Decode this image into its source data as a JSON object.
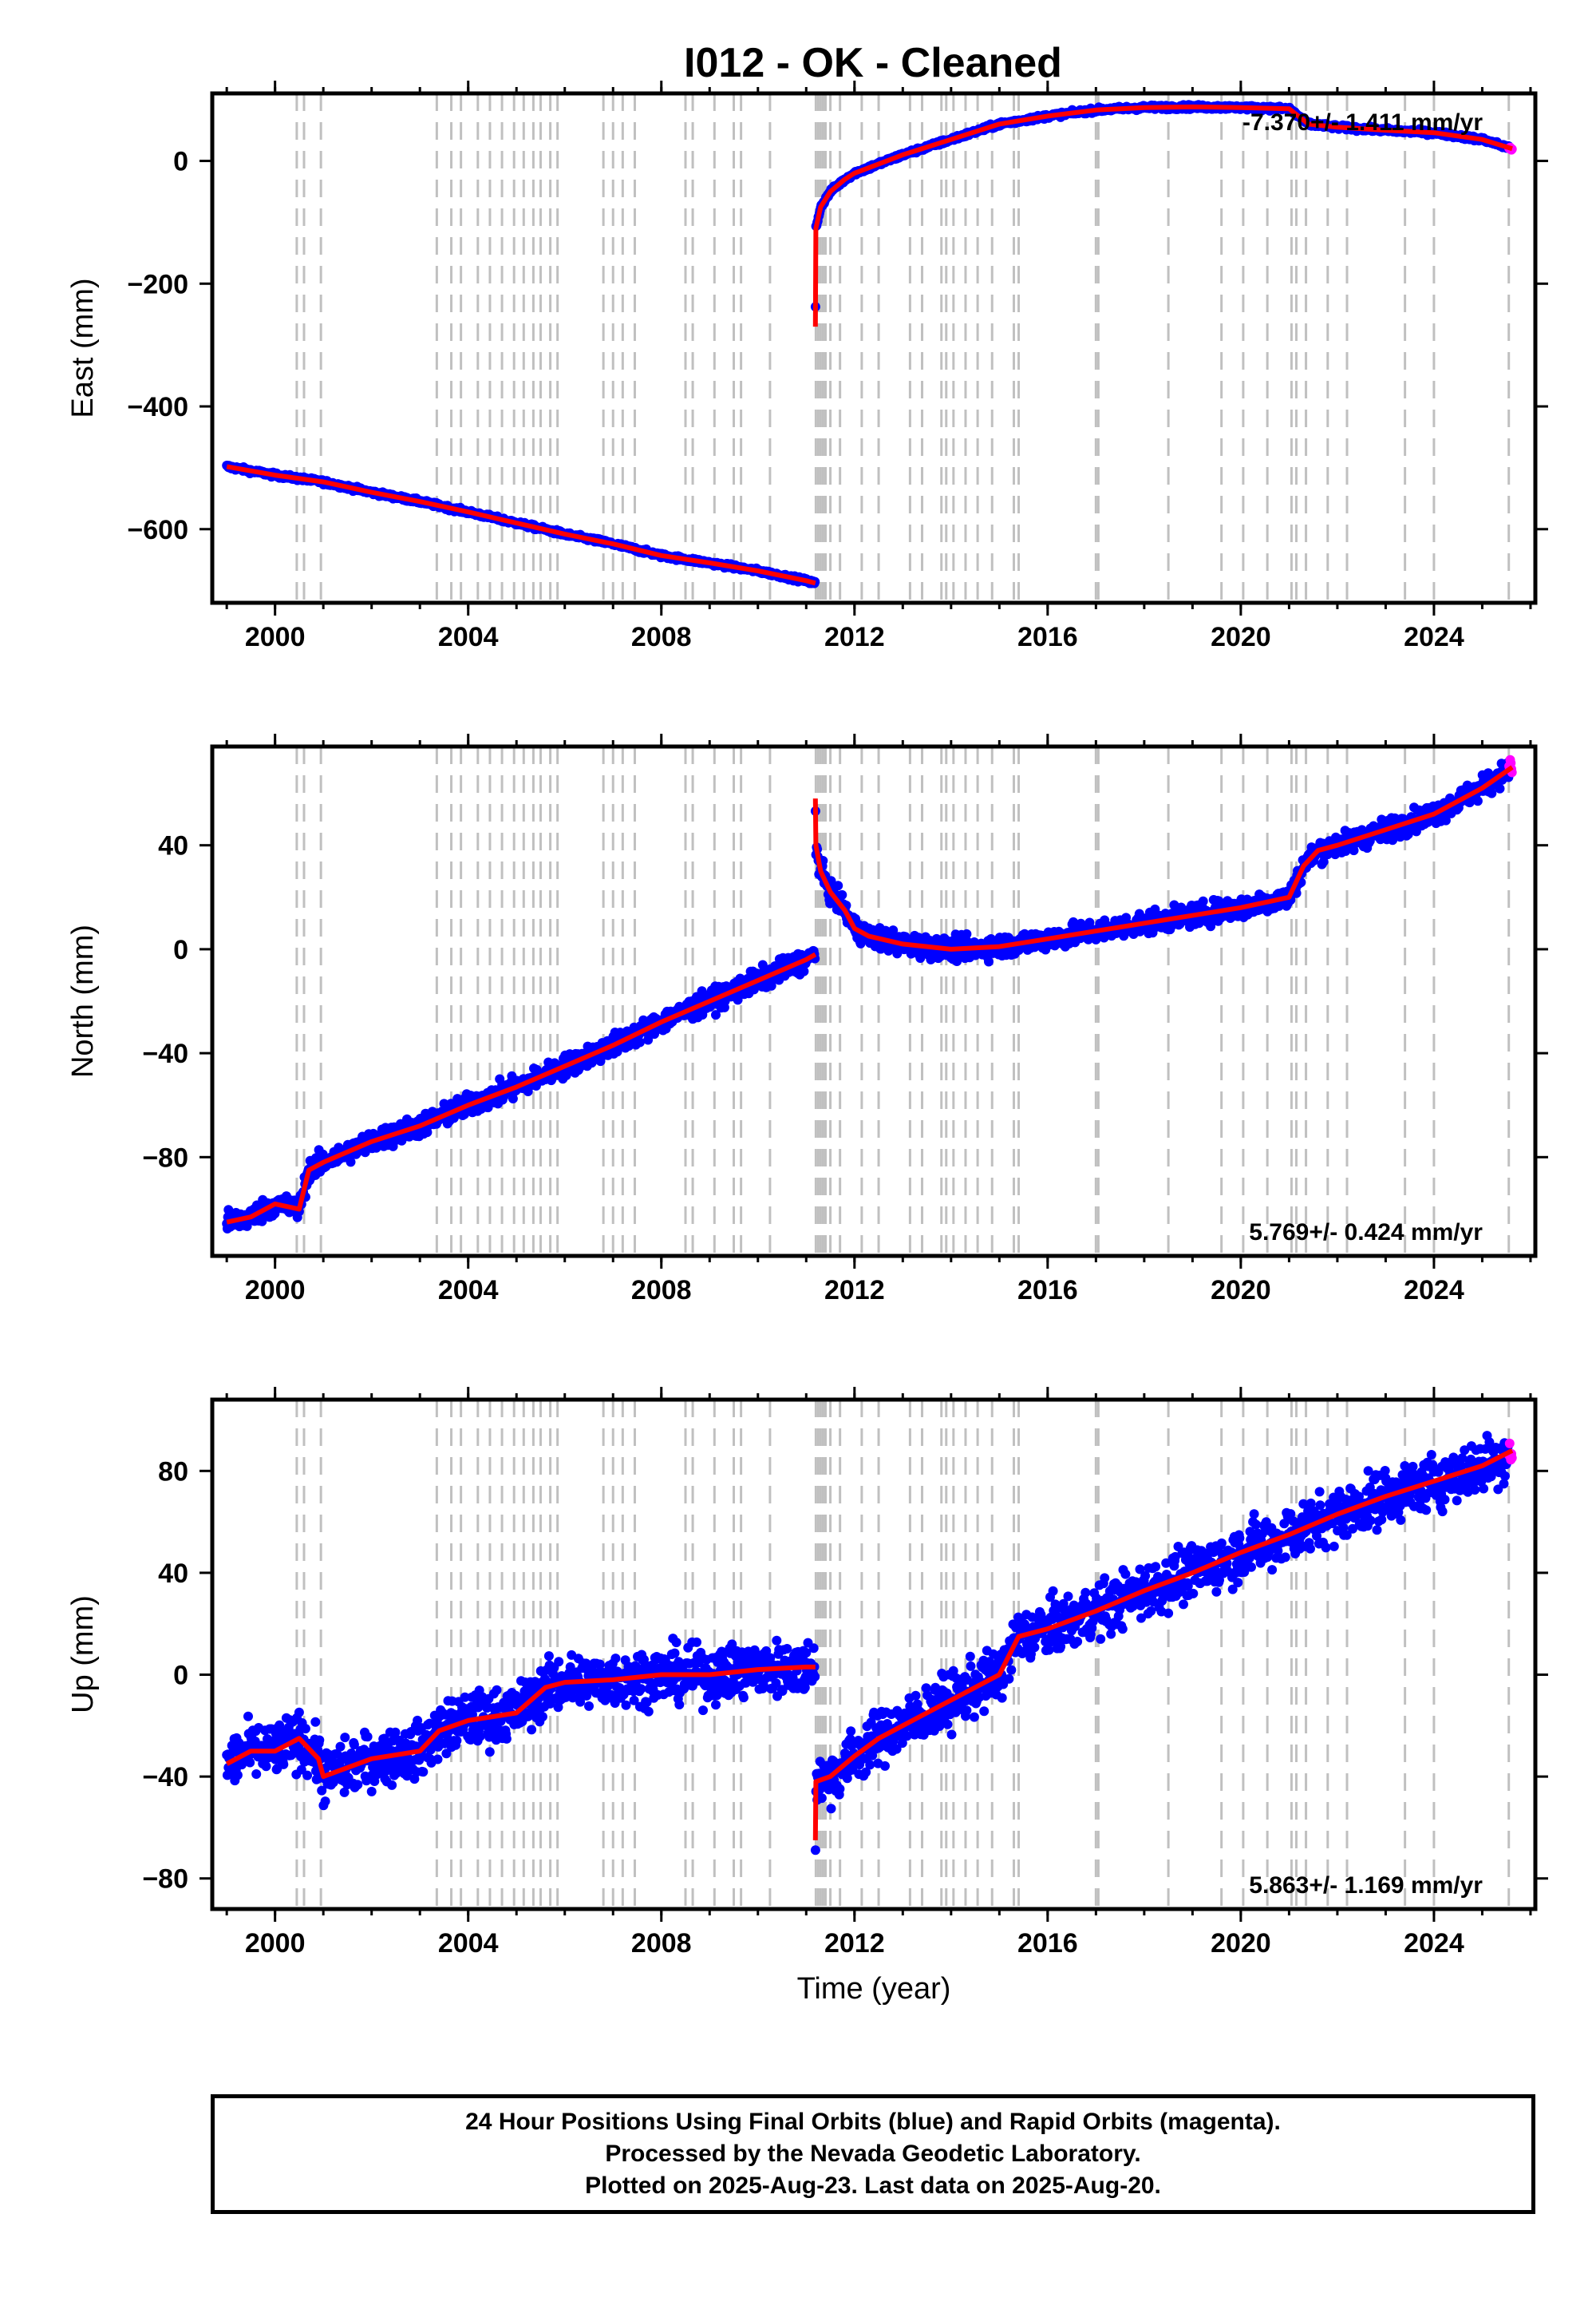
{
  "title": "I012  - OK - Cleaned",
  "colors": {
    "final_orbits": "#0000ff",
    "rapid_orbits": "#ff00ff",
    "model": "#ff0000",
    "event_lines": "#c0c0c0",
    "frame": "#000000"
  },
  "chart_data": [
    {
      "type": "scatter",
      "ylabel": "East (mm)",
      "xlim": [
        1998.7,
        2026.1
      ],
      "ylim": [
        -720,
        110
      ],
      "yticks": [
        0,
        -200,
        -400,
        -600
      ],
      "xticks": [
        2000,
        2004,
        2008,
        2012,
        2016,
        2020,
        2024
      ],
      "xtick_labels": [
        "2000",
        "2004",
        "2008",
        "2012",
        "2016",
        "2020",
        "2024"
      ],
      "ytick_labels": [
        "0",
        "−200",
        "−400",
        "−600"
      ],
      "rate_label": "-7.370+/- 1.411 mm/yr",
      "rate_position": "top-right",
      "series": [
        {
          "role": "trend",
          "x": [
            1999.0,
            2000.0,
            2001.0,
            2002.0,
            2003.0,
            2004.0,
            2005.0,
            2006.0,
            2007.0,
            2008.0,
            2009.0,
            2010.0,
            2011.0,
            2011.19
          ],
          "values": [
            -498,
            -512,
            -523,
            -540,
            -555,
            -572,
            -590,
            -608,
            -624,
            -643,
            -655,
            -668,
            -684,
            -688
          ]
        },
        {
          "role": "trend",
          "x": [
            2011.19,
            2011.2,
            2011.3,
            2011.5,
            2011.8,
            2012.0,
            2012.5,
            2013.0,
            2014.0,
            2015.0,
            2016.0,
            2017.0,
            2018.0,
            2019.0,
            2020.0,
            2021.0,
            2021.4,
            2022.0,
            2023.0,
            2024.0,
            2025.0,
            2025.62
          ],
          "values": [
            -270,
            -110,
            -75,
            -50,
            -30,
            -20,
            -5,
            10,
            35,
            60,
            73,
            83,
            87,
            88,
            87,
            85,
            60,
            55,
            50,
            46,
            35,
            20
          ]
        }
      ]
    },
    {
      "type": "scatter",
      "ylabel": "North (mm)",
      "xlim": [
        1998.7,
        2026.1
      ],
      "ylim": [
        -118,
        78
      ],
      "yticks": [
        40,
        0,
        -40,
        -80
      ],
      "xticks": [
        2000,
        2004,
        2008,
        2012,
        2016,
        2020,
        2024
      ],
      "xtick_labels": [
        "2000",
        "2004",
        "2008",
        "2012",
        "2016",
        "2020",
        "2024"
      ],
      "ytick_labels": [
        "40",
        "0",
        "−40",
        "−80"
      ],
      "rate_label": "5.769+/- 0.424 mm/yr",
      "rate_position": "bottom-right",
      "series": [
        {
          "role": "trend",
          "x": [
            1999.0,
            1999.5,
            2000.0,
            2000.5,
            2000.7,
            2001.0,
            2002.0,
            2003.0,
            2004.0,
            2005.0,
            2006.0,
            2007.0,
            2008.0,
            2009.0,
            2010.0,
            2011.0,
            2011.19
          ],
          "values": [
            -105,
            -103,
            -98,
            -100,
            -85,
            -82,
            -74,
            -68,
            -60,
            -53,
            -45,
            -37,
            -28,
            -20,
            -12,
            -4,
            -2
          ]
        },
        {
          "role": "trend",
          "x": [
            2011.19,
            2011.2,
            2011.3,
            2011.5,
            2011.8,
            2012.0,
            2012.3,
            2013.0,
            2014.0,
            2015.0,
            2016.0,
            2017.0,
            2018.0,
            2019.0,
            2020.0,
            2021.0,
            2021.3,
            2021.6,
            2022.0,
            2023.0,
            2024.0,
            2025.0,
            2025.62
          ],
          "values": [
            58,
            40,
            30,
            22,
            15,
            8,
            5,
            2,
            0,
            1,
            4,
            7,
            10,
            13,
            16,
            20,
            32,
            38,
            40,
            46,
            52,
            62,
            70
          ]
        }
      ]
    },
    {
      "type": "scatter",
      "ylabel": "Up (mm)",
      "xlabel": "Time (year)",
      "xlim": [
        1998.7,
        2026.1
      ],
      "ylim": [
        -92,
        108
      ],
      "yticks": [
        80,
        40,
        0,
        -40,
        -80
      ],
      "xticks": [
        2000,
        2004,
        2008,
        2012,
        2016,
        2020,
        2024
      ],
      "xtick_labels": [
        "2000",
        "2004",
        "2008",
        "2012",
        "2016",
        "2020",
        "2024"
      ],
      "ytick_labels": [
        "80",
        "40",
        "0",
        "−40",
        "−80"
      ],
      "rate_label": "5.863+/- 1.169 mm/yr",
      "rate_position": "bottom-right",
      "series": [
        {
          "role": "trend",
          "x": [
            1999.0,
            1999.5,
            2000.0,
            2000.5,
            2000.9,
            2001.0,
            2002.0,
            2003.0,
            2003.4,
            2004.0,
            2005.0,
            2005.6,
            2006.0,
            2007.0,
            2008.0,
            2009.0,
            2010.0,
            2011.0,
            2011.19
          ],
          "values": [
            -35,
            -30,
            -30,
            -25,
            -33,
            -40,
            -33,
            -30,
            -22,
            -18,
            -15,
            -5,
            -3,
            -2,
            0,
            0,
            2,
            3,
            3
          ]
        },
        {
          "role": "trend",
          "x": [
            2011.19,
            2011.2,
            2011.5,
            2012.0,
            2012.5,
            2013.0,
            2014.0,
            2015.0,
            2015.4,
            2016.0,
            2017.0,
            2018.0,
            2019.0,
            2020.0,
            2021.0,
            2022.0,
            2023.0,
            2024.0,
            2025.0,
            2025.62
          ],
          "values": [
            -65,
            -42,
            -40,
            -32,
            -25,
            -20,
            -10,
            0,
            15,
            18,
            25,
            33,
            40,
            48,
            55,
            63,
            70,
            76,
            82,
            88
          ]
        }
      ]
    }
  ],
  "caption": {
    "line1": "24 Hour Positions Using Final Orbits (blue) and Rapid Orbits (magenta).",
    "line2": "Processed by the Nevada Geodetic Laboratory.",
    "line3": "Plotted on 2025-Aug-23. Last data on 2025-Aug-20."
  },
  "event_years": [
    2000.45,
    2000.6,
    2000.95,
    2003.35,
    2003.65,
    2003.85,
    2004.2,
    2004.45,
    2004.7,
    2004.95,
    2005.15,
    2005.35,
    2005.5,
    2005.7,
    2005.85,
    2006.8,
    2007.0,
    2007.2,
    2007.45,
    2008.5,
    2008.65,
    2009.1,
    2009.5,
    2009.65,
    2010.25,
    2011.2,
    2011.25,
    2011.3,
    2011.35,
    2011.4,
    2011.5,
    2011.7,
    2012.15,
    2012.5,
    2013.15,
    2013.4,
    2013.8,
    2013.9,
    2014.05,
    2014.3,
    2014.55,
    2014.85,
    2015.3,
    2015.4,
    2017.0,
    2017.05,
    2018.5,
    2019.6,
    2020.05,
    2020.55,
    2021.05,
    2021.15,
    2021.35,
    2021.8,
    2022.2,
    2023.4,
    2024.0,
    2025.55
  ]
}
